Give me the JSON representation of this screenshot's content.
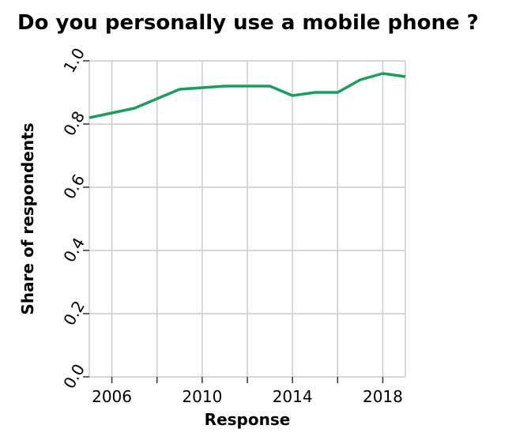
{
  "chart_data": {
    "type": "line",
    "title": "Do you personally use a mobile phone ?",
    "xlabel": "Response",
    "ylabel": "Share of respondents",
    "xlim": [
      2005,
      2019
    ],
    "ylim": [
      0,
      1
    ],
    "x_ticks": [
      2006,
      2010,
      2014,
      2018
    ],
    "y_ticks": [
      "0.0",
      "0.2",
      "0.4",
      "0.6",
      "0.8",
      "1.0"
    ],
    "grid": true,
    "series": [
      {
        "color": "#1a9e5c",
        "x": [
          2005,
          2006,
          2007,
          2008,
          2009,
          2010,
          2011,
          2012,
          2013,
          2014,
          2015,
          2016,
          2017,
          2018,
          2019
        ],
        "values": [
          0.82,
          0.835,
          0.85,
          0.88,
          0.91,
          0.915,
          0.92,
          0.92,
          0.92,
          0.89,
          0.9,
          0.9,
          0.94,
          0.96,
          0.95
        ]
      }
    ]
  }
}
